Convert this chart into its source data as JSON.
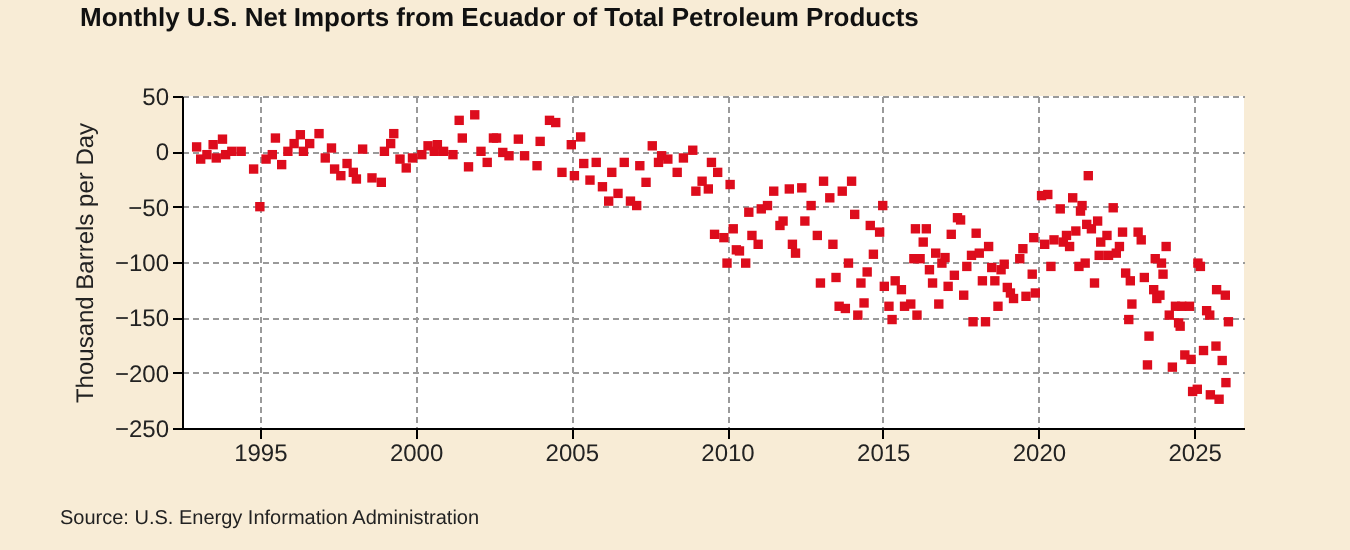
{
  "chart_data": {
    "type": "scatter",
    "title": "Monthly U.S. Net Imports from Ecuador of Total Petroleum Products",
    "ylabel": "Thousand Barrels per Day",
    "annotations": [
      "Source: U.S. Energy Information Administration"
    ],
    "xlim": [
      1992.5,
      2026.6
    ],
    "xticks": [
      1995,
      2000,
      2005,
      2010,
      2015,
      2020,
      2025
    ],
    "ylim": [
      -250,
      50
    ],
    "yticks": [
      -250,
      -200,
      -150,
      -100,
      -50,
      0,
      50
    ],
    "grid": true,
    "marker": "square",
    "legend": false,
    "series": [
      {
        "color": "#dd0c1c",
        "x": [
          1992.97,
          1993.1,
          1993.3,
          1993.5,
          1993.6,
          1993.8,
          1993.9,
          1994.1,
          1994.4,
          1994.8,
          1995.0,
          1995.2,
          1995.4,
          1995.5,
          1995.7,
          1995.9,
          1996.1,
          1996.3,
          1996.4,
          1996.6,
          1996.9,
          1997.1,
          1997.3,
          1997.4,
          1997.6,
          1997.8,
          1998.0,
          1998.1,
          1998.3,
          1998.6,
          1998.9,
          1999.0,
          1999.2,
          1999.3,
          1999.5,
          1999.7,
          1999.9,
          2000.2,
          2000.4,
          2000.6,
          2000.7,
          2000.9,
          2001.2,
          2001.4,
          2001.5,
          2001.7,
          2001.9,
          2002.1,
          2002.3,
          2002.5,
          2002.6,
          2002.8,
          2003.0,
          2003.3,
          2003.5,
          2003.9,
          2004.0,
          2004.3,
          2004.5,
          2004.7,
          2005.0,
          2005.1,
          2005.3,
          2005.4,
          2005.6,
          2005.8,
          2006.0,
          2006.2,
          2006.3,
          2006.5,
          2006.7,
          2006.9,
          2007.1,
          2007.2,
          2007.4,
          2007.6,
          2007.8,
          2007.9,
          2008.1,
          2008.4,
          2008.6,
          2008.9,
          2009.0,
          2009.2,
          2009.4,
          2009.5,
          2009.6,
          2009.7,
          2009.9,
          2010.0,
          2010.1,
          2010.2,
          2010.3,
          2010.4,
          2010.6,
          2010.7,
          2010.8,
          2011.0,
          2011.1,
          2011.3,
          2011.5,
          2011.7,
          2011.8,
          2012.0,
          2012.1,
          2012.2,
          2012.4,
          2012.5,
          2012.7,
          2012.9,
          2013.0,
          2013.1,
          2013.3,
          2013.4,
          2013.5,
          2013.6,
          2013.7,
          2013.8,
          2013.9,
          2014.0,
          2014.1,
          2014.2,
          2014.3,
          2014.4,
          2014.5,
          2014.6,
          2014.7,
          2014.9,
          2015.0,
          2015.05,
          2015.2,
          2015.3,
          2015.4,
          2015.6,
          2015.7,
          2015.9,
          2016.0,
          2016.05,
          2016.1,
          2016.2,
          2016.3,
          2016.4,
          2016.5,
          2016.6,
          2016.7,
          2016.8,
          2016.9,
          2017.0,
          2017.1,
          2017.2,
          2017.3,
          2017.4,
          2017.5,
          2017.6,
          2017.7,
          2017.85,
          2017.9,
          2018.0,
          2018.1,
          2018.2,
          2018.3,
          2018.4,
          2018.5,
          2018.6,
          2018.7,
          2018.8,
          2018.9,
          2019.0,
          2019.1,
          2019.2,
          2019.4,
          2019.5,
          2019.6,
          2019.8,
          2019.85,
          2019.9,
          2020.1,
          2020.2,
          2020.3,
          2020.4,
          2020.5,
          2020.7,
          2020.8,
          2020.9,
          2021.0,
          2021.1,
          2021.2,
          2021.3,
          2021.35,
          2021.4,
          2021.5,
          2021.55,
          2021.6,
          2021.7,
          2021.8,
          2021.9,
          2021.95,
          2022.0,
          2022.2,
          2022.25,
          2022.4,
          2022.5,
          2022.6,
          2022.7,
          2022.8,
          2022.9,
          2022.95,
          2023.0,
          2023.2,
          2023.3,
          2023.4,
          2023.5,
          2023.55,
          2023.7,
          2023.75,
          2023.8,
          2023.9,
          2023.95,
          2024.0,
          2024.1,
          2024.2,
          2024.3,
          2024.4,
          2024.5,
          2024.55,
          2024.6,
          2024.7,
          2024.85,
          2024.9,
          2024.95,
          2025.1,
          2025.12,
          2025.2,
          2025.3,
          2025.4,
          2025.5,
          2025.52,
          2025.7,
          2025.72,
          2025.8,
          2025.9,
          2026.0,
          2026.02,
          2026.1
        ],
        "values": [
          4,
          -7,
          -3,
          6,
          -6,
          11,
          -3,
          0,
          0,
          -16,
          -50,
          -7,
          -3,
          12,
          -12,
          0,
          7,
          15,
          0,
          7,
          16,
          -6,
          3,
          -16,
          -22,
          -11,
          -19,
          -25,
          2,
          -24,
          -28,
          0,
          7,
          16,
          -7,
          -15,
          -6,
          -3,
          5,
          0,
          6,
          0,
          -3,
          28,
          12,
          -14,
          33,
          0,
          -10,
          12,
          12,
          -1,
          -4,
          11,
          -4,
          -13,
          9,
          28,
          26,
          -19,
          6,
          -22,
          13,
          -11,
          -26,
          -10,
          -32,
          -45,
          -19,
          -38,
          -10,
          -45,
          -49,
          -13,
          -28,
          5,
          -10,
          -4,
          -7,
          -19,
          -6,
          1,
          -36,
          -27,
          -34,
          -10,
          -75,
          -19,
          -78,
          -101,
          -30,
          -70,
          -89,
          -90,
          -101,
          -55,
          -76,
          -84,
          -52,
          -49,
          -36,
          -67,
          -63,
          -34,
          -84,
          -92,
          -33,
          -63,
          -49,
          -76,
          -119,
          -27,
          -42,
          -84,
          -114,
          -140,
          -36,
          -142,
          -101,
          -27,
          -57,
          -148,
          -119,
          -137,
          -109,
          -67,
          -93,
          -73,
          -49,
          -122,
          -140,
          -152,
          -117,
          -125,
          -140,
          -138,
          -97,
          -70,
          -148,
          -97,
          -82,
          -70,
          -107,
          -119,
          -92,
          -138,
          -101,
          -96,
          -122,
          -75,
          -112,
          -60,
          -62,
          -130,
          -104,
          -94,
          -154,
          -74,
          -92,
          -117,
          -154,
          -86,
          -105,
          -117,
          -140,
          -107,
          -102,
          -123,
          -128,
          -133,
          -97,
          -88,
          -131,
          -111,
          -78,
          -128,
          -40,
          -84,
          -39,
          -104,
          -80,
          -52,
          -82,
          -76,
          -86,
          -42,
          -72,
          -104,
          -54,
          -49,
          -101,
          -66,
          -22,
          -70,
          -119,
          -63,
          -94,
          -82,
          -76,
          -94,
          -51,
          -92,
          -86,
          -73,
          -110,
          -152,
          -117,
          -138,
          -73,
          -80,
          -114,
          -193,
          -167,
          -125,
          -97,
          -133,
          -130,
          -101,
          -111,
          -86,
          -148,
          -195,
          -140,
          -155,
          -158,
          -140,
          -184,
          -140,
          -188,
          -217,
          -215,
          -101,
          -104,
          -180,
          -144,
          -148,
          -220,
          -176,
          -125,
          -224,
          -189,
          -130,
          -209,
          -154
        ]
      }
    ]
  }
}
